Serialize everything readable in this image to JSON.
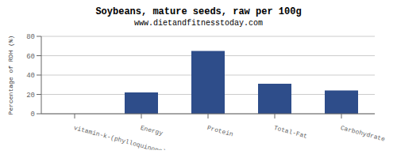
{
  "chart_data": {
    "type": "bar",
    "title": "Soybeans, mature seeds, raw per 100g",
    "subtitle": "www.dietandfitnesstoday.com",
    "ylabel": "Percentage of RDH (%)",
    "categories": [
      "vitamin-k-(phylloquinone)",
      "Energy",
      "Protein",
      "Total-Fat",
      "Carbohydrate"
    ],
    "values": [
      0,
      22,
      65,
      31,
      24
    ],
    "color": "#2e4d8a",
    "ylim": [
      0,
      80
    ],
    "yticks": [
      0,
      20,
      40,
      60,
      80
    ],
    "grid": true
  }
}
